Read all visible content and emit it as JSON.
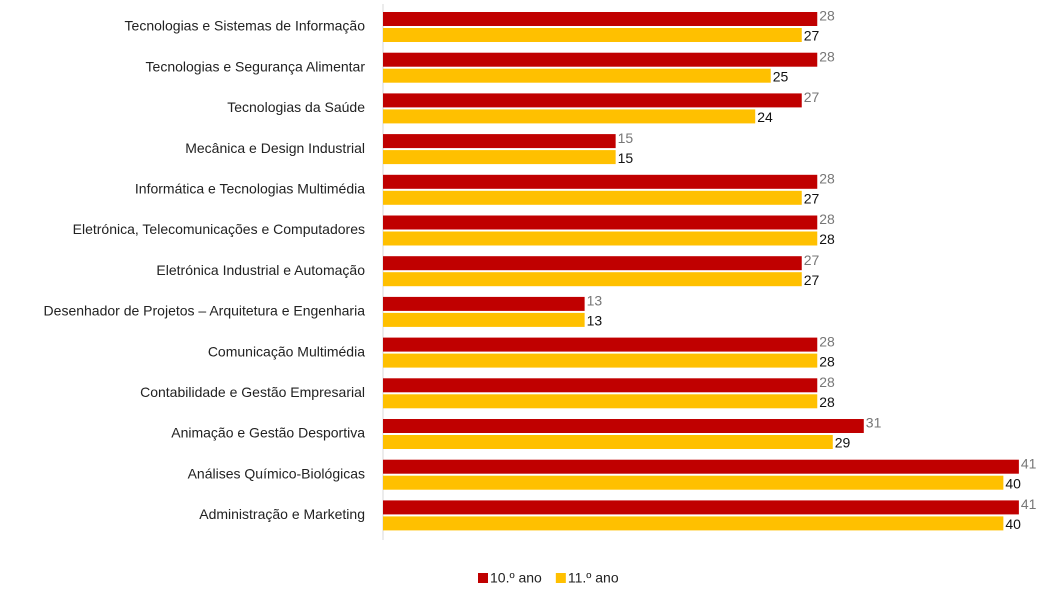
{
  "chart_data": {
    "type": "barh",
    "categories": [
      "Tecnologias e Sistemas de Informação",
      "Tecnologias e Segurança Alimentar",
      "Tecnologias da Saúde",
      "Mecânica e Design Industrial",
      "Informática e Tecnologias Multimédia",
      "Eletrónica, Telecomunicações e Computadores",
      "Eletrónica Industrial e Automação",
      "Desenhador de Projetos – Arquitetura e Engenharia",
      "Comunicação Multimédia",
      "Contabilidade e Gestão Empresarial",
      "Animação e Gestão Desportiva",
      "Análises Químico-Biológicas",
      "Administração e Marketing"
    ],
    "series": [
      {
        "name": "10.º ano",
        "color": "#c00000",
        "values": [
          28,
          28,
          27,
          15,
          28,
          28,
          27,
          13,
          28,
          28,
          31,
          41,
          41
        ]
      },
      {
        "name": "11.º ano",
        "color": "#ffc000",
        "values": [
          27,
          25,
          24,
          15,
          27,
          28,
          27,
          13,
          28,
          28,
          29,
          40,
          40
        ]
      }
    ],
    "xlim": [
      0,
      43.2
    ],
    "legend": "bottom"
  }
}
